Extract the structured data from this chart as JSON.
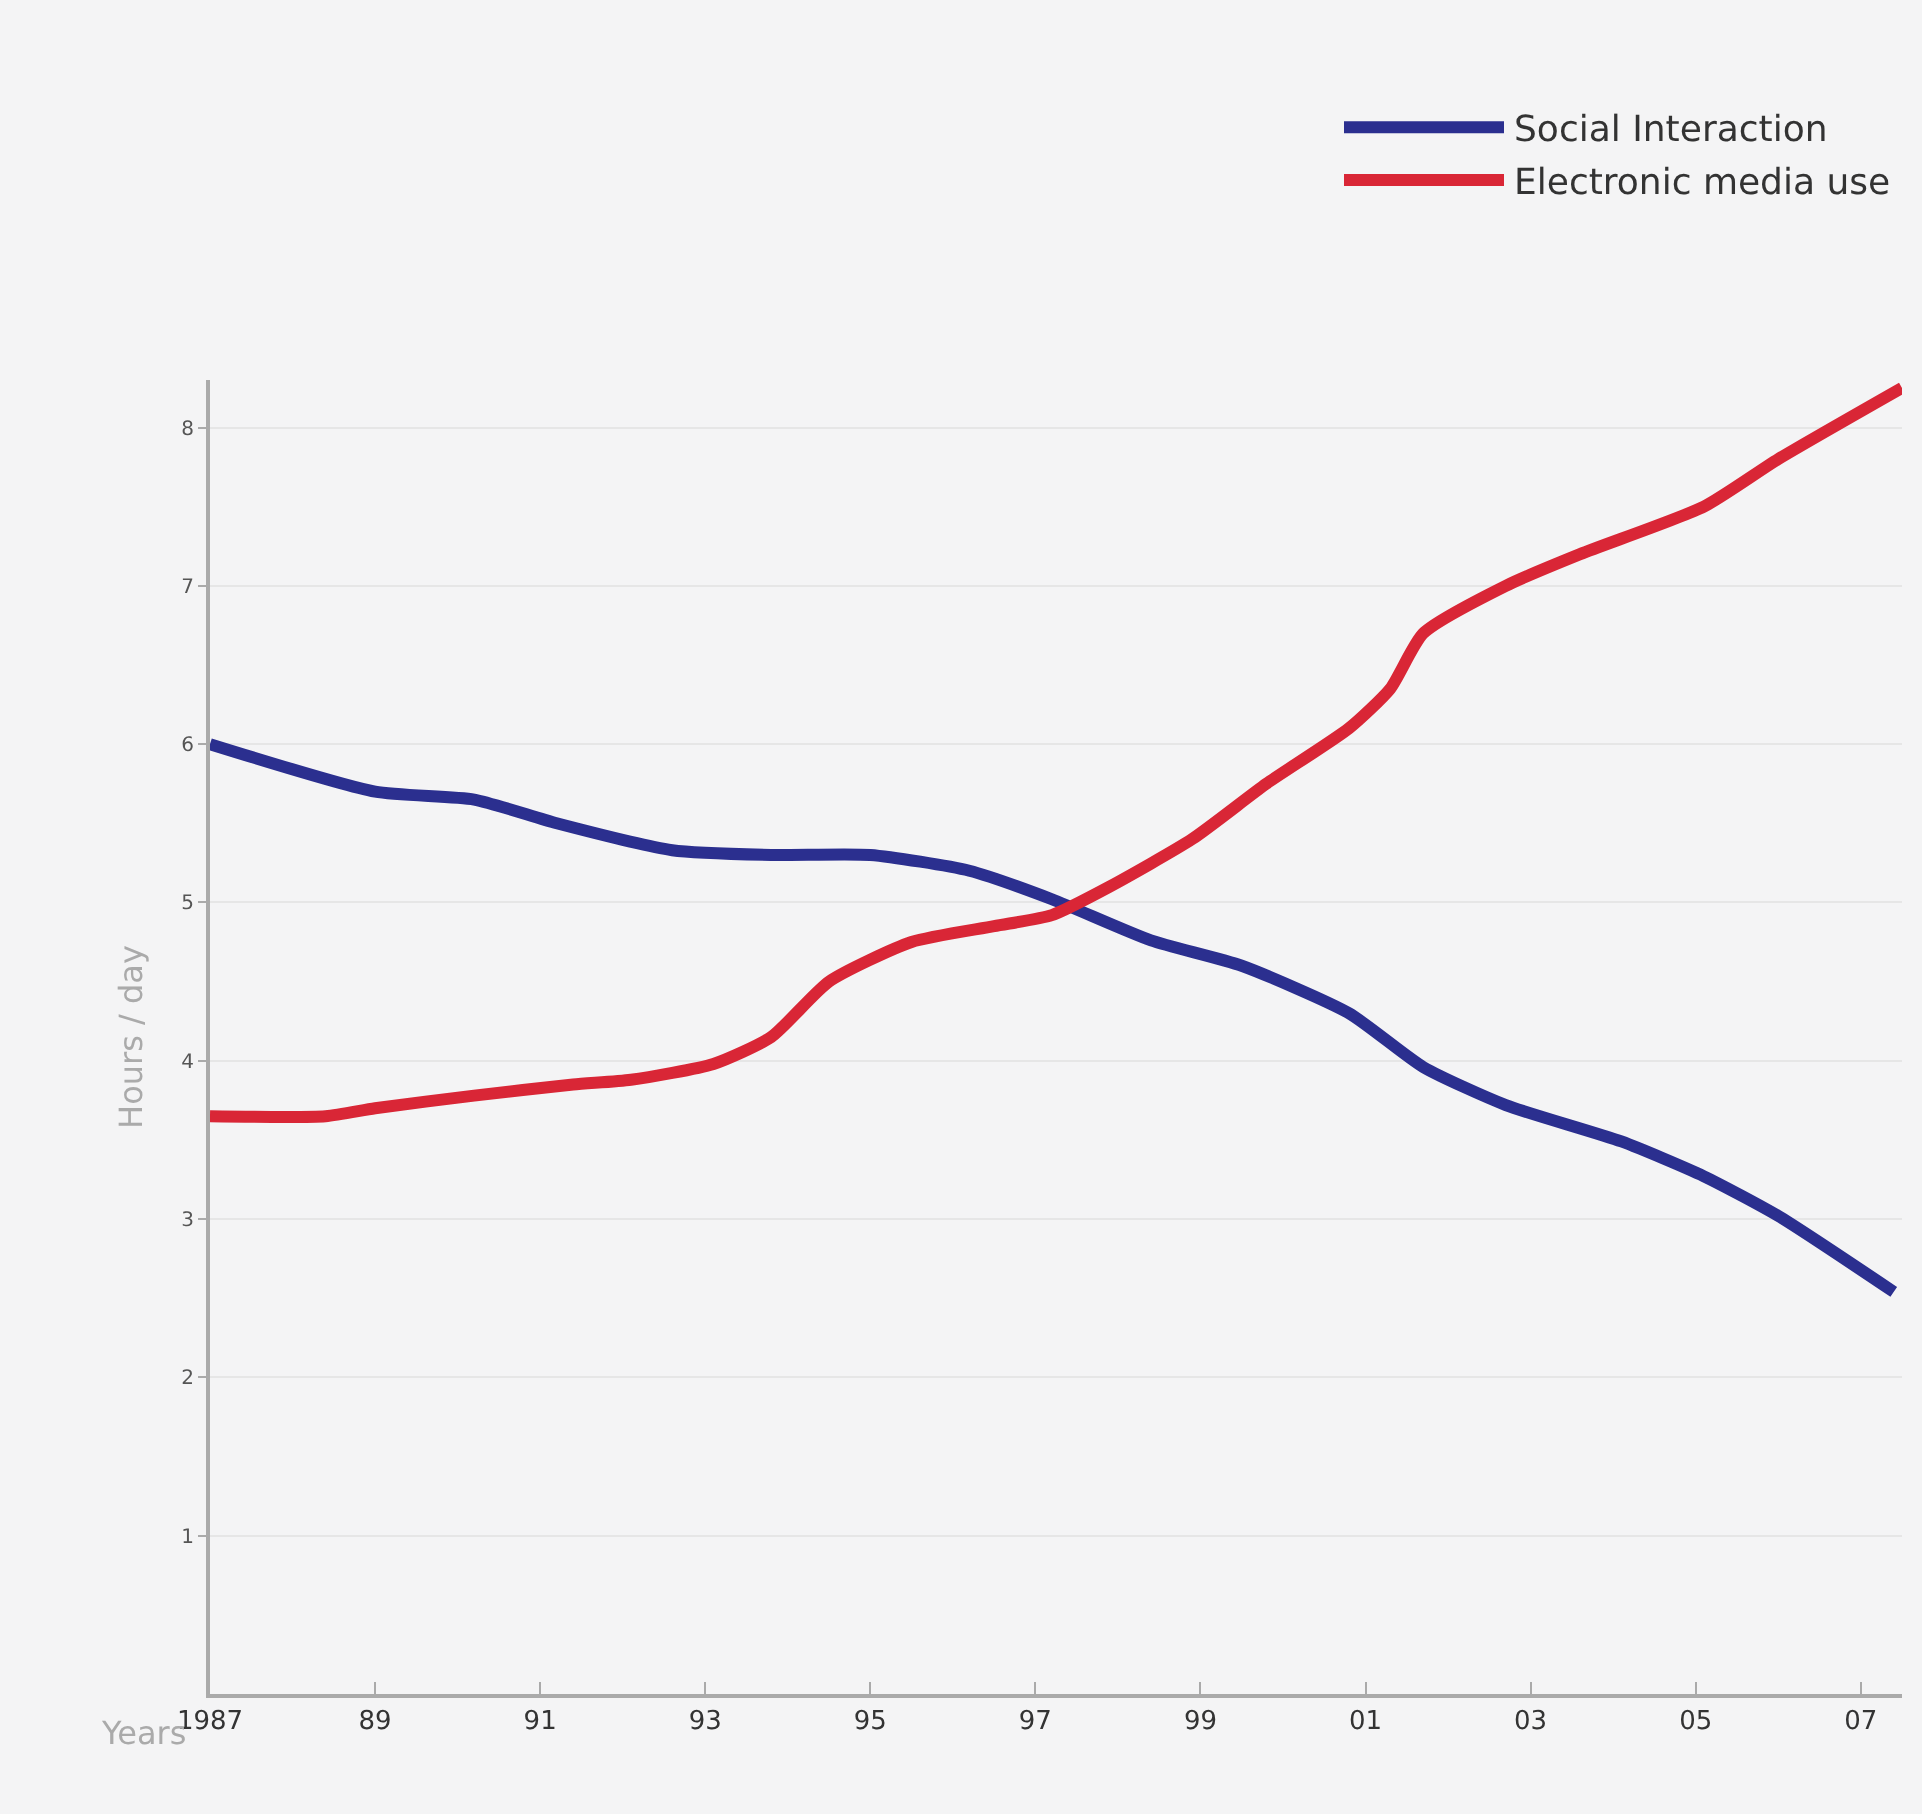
{
  "chart_data": {
    "type": "line",
    "xlabel": "Years",
    "ylabel": "Hours / day",
    "xlim": [
      1987,
      2007.5
    ],
    "ylim": [
      0,
      8.3
    ],
    "xticks": [
      {
        "value": 1987,
        "label": "1987"
      },
      {
        "value": 1989,
        "label": "89"
      },
      {
        "value": 1991,
        "label": "91"
      },
      {
        "value": 1993,
        "label": "93"
      },
      {
        "value": 1995,
        "label": "95"
      },
      {
        "value": 1997,
        "label": "97"
      },
      {
        "value": 1999,
        "label": "99"
      },
      {
        "value": 2001,
        "label": "01"
      },
      {
        "value": 2003,
        "label": "03"
      },
      {
        "value": 2005,
        "label": "05"
      },
      {
        "value": 2007,
        "label": "07"
      }
    ],
    "yticks": [
      1,
      2,
      3,
      4,
      5,
      6,
      7,
      8
    ],
    "grid": "y",
    "legend": "top right",
    "marker": "none",
    "line_style": "solid",
    "series": [
      {
        "name": "Social Interaction",
        "color": "#2b2f8f",
        "x": [
          1987,
          1989,
          1990.2,
          1991.2,
          1992.6,
          1993.8,
          1995,
          1996.2,
          1997.2,
          1998.4,
          1999.5,
          2000.8,
          2001.7,
          2002.7,
          2004.1,
          2005.1,
          2006,
          2007.4
        ],
        "values": [
          6.0,
          5.7,
          5.65,
          5.5,
          5.33,
          5.3,
          5.3,
          5.2,
          5.02,
          4.76,
          4.6,
          4.3,
          3.96,
          3.72,
          3.49,
          3.27,
          3.02,
          2.54
        ]
      },
      {
        "name": "Electronic media use",
        "color": "#d92636",
        "x": [
          1987,
          1988.4,
          1989,
          1990.2,
          1991.4,
          1992.1,
          1993.1,
          1993.8,
          1994.5,
          1995.5,
          1996.5,
          1997.2,
          1997.9,
          1998.9,
          1999.8,
          2000.8,
          2001.3,
          2001.7,
          2002.7,
          2003.6,
          2005.1,
          2006,
          2007.5
        ],
        "values": [
          3.65,
          3.65,
          3.7,
          3.78,
          3.85,
          3.88,
          3.98,
          4.15,
          4.5,
          4.75,
          4.85,
          4.92,
          5.1,
          5.4,
          5.75,
          6.1,
          6.35,
          6.7,
          7.0,
          7.2,
          7.5,
          7.8,
          8.25
        ]
      }
    ]
  }
}
